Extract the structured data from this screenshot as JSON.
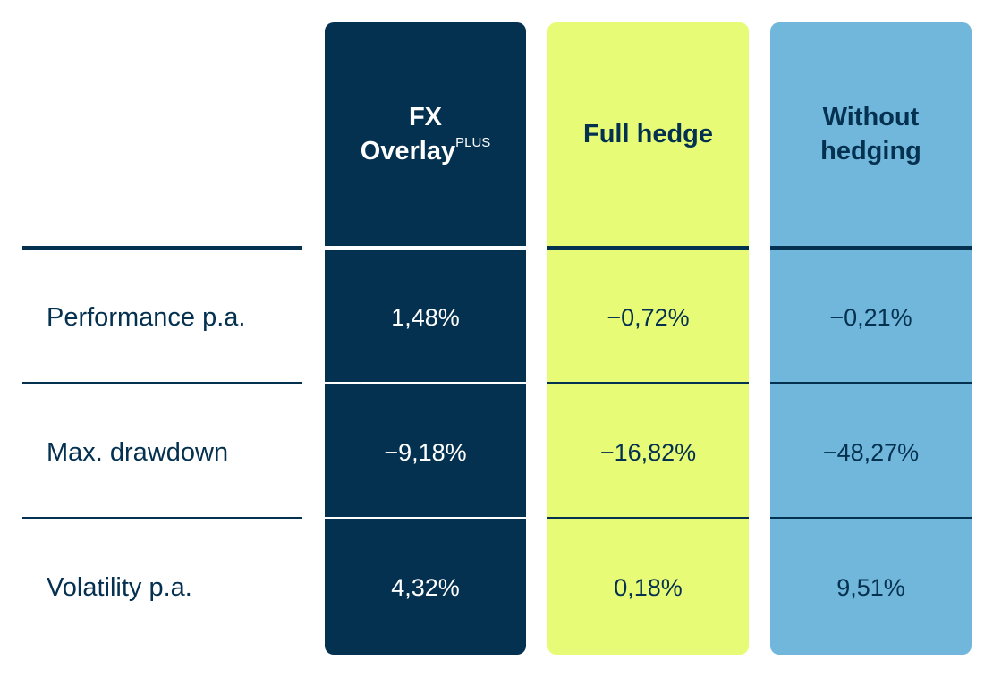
{
  "chart_data": {
    "type": "table",
    "columns": [
      {
        "title": "FX Overlay",
        "sup": "PLUS",
        "color": "#053150"
      },
      {
        "title": "Full hedge",
        "sup": "",
        "color": "#e8fb77"
      },
      {
        "title": "Without hedging",
        "sup": "",
        "color": "#70b7db"
      }
    ],
    "rows": [
      {
        "label": "Performance p.a.",
        "values": [
          "1,48%",
          "−0,72%",
          "−0,21%"
        ]
      },
      {
        "label": "Max. drawdown",
        "values": [
          "−9,18%",
          "−16,82%",
          "−48,27%"
        ]
      },
      {
        "label": "Volatility p.a.",
        "values": [
          "4,32%",
          "0,18%",
          "9,51%"
        ]
      }
    ]
  }
}
